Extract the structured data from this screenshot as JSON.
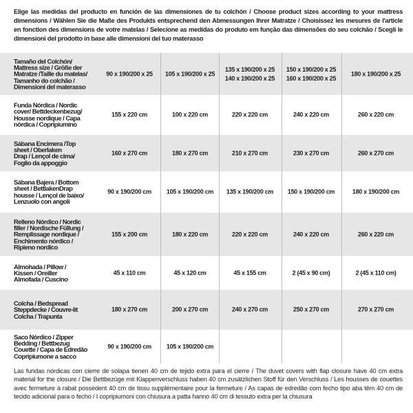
{
  "intro_lines": [
    "Elige las medidas del producto en función de las dimensiones de tu colchón / Choose product sizes according to your mattress",
    "dimensions / Wählen Sie die Maße des Produkts entsprechend den Abmessungen Ihrer Matratze / Choisissez les mesures de l'article",
    "en fonction des dimensions de votre matelas / Selecione as medidas do produto em função das dimensões do seu colchão / Scegli le",
    "dimensioni del prodotto in base alle dimensioni del tuo materasso"
  ],
  "table": {
    "header": {
      "label_lines": [
        "Tamaño del Colchón/",
        "Mattress size / Größe der",
        "Matratze /Taille du matelas/",
        "Tamanho do colchão /",
        "Dimensioni del materasso"
      ],
      "cells": [
        [
          "90 x 190/200 x 25"
        ],
        [
          "105 x 190/200 x 25"
        ],
        [
          "135 x 190/200 x 25",
          "140 x 190/200 x 25"
        ],
        [
          "150 x 190/200 x 25",
          "160 x 190/200 x 25"
        ],
        [
          "180 x 190/200 x 25"
        ]
      ]
    },
    "rows": [
      {
        "label_lines": [
          "Funda Nórdica /  Nordic",
          "cover/ Bettdeckenbezug/",
          "Housse nordique  / Capa",
          "nórdica / Copripiumino"
        ],
        "cells": [
          "155 x 220 cm",
          "100 x 220 cm",
          "220 x 220 cm",
          "240 x 220 cm",
          "260 x 220 cm"
        ]
      },
      {
        "label_lines": [
          "Sábana Encimera /Top",
          "sheet / Oberlaken",
          "Drap / Lençol de cima/",
          "Foglio da appoggio"
        ],
        "cells": [
          "160 x 270 cm",
          "180 x 270 cm",
          "210 x 270 cm",
          "230 x 270 cm",
          "260 x 270 cm"
        ]
      },
      {
        "label_lines": [
          "Sábana Bajera / Bottom",
          "sheet / BettlakenDrap",
          "housse / Lençol de baixo/",
          "Lenzuolo con angoli"
        ],
        "cells": [
          "90 x 190/200 cm",
          "105 x 190/200 cm",
          "135 x 190/200 cm",
          "150 x 190/200 cm",
          "180 x 190/200 cm"
        ]
      },
      {
        "label_lines": [
          "Relleno Nórdico / Nordic",
          "filler / Nordische Füllung /",
          "Remplissage nordique /",
          "Enchimento nórdico /",
          "Ripieno nordico"
        ],
        "cells": [
          "155 x 200 cm",
          "180 x 220 cm",
          "220 x 220 cm",
          "240 x 220 cm",
          "260 x 220 cm"
        ]
      },
      {
        "label_lines": [
          "Almohada  / Pillow /",
          "Kissen / Oreiller",
          "Almofada / Cuscino"
        ],
        "cells": [
          "45 x 110 cm",
          "45 x 120 cm",
          "45 x 155 cm",
          "2 (45 x 90 cm)",
          "2 (45 x 110 cm)"
        ]
      },
      {
        "label_lines": [
          "Colcha / Bedspread",
          "Steppdecke / Couvre-lit",
          "Colcha / Trapunta"
        ],
        "cells": [
          "180 x 270 cm",
          "200 x 270 cm",
          "240 x 270 cm",
          "250 x 270 cm",
          "270 x 270 cm"
        ]
      },
      {
        "label_lines": [
          "Saco Nórdico / Zipper",
          "Bedding / Bettbezug",
          "Couette  / Capa de Edredão",
          "Copripiumone a sacco"
        ],
        "cells": [
          "90 x 190/200 cm",
          "105 x 190/200 cm",
          "",
          "",
          ""
        ]
      }
    ]
  },
  "footer_lines": [
    "Las fundas nórdicas con cierre de solapa tienen 40 cm de tejido extra para el cierre  / The duvet covers with flap closure have 40 cm extra",
    "material for the closure / Die Bettbezüge mit Klappenverschluss haben 40 cm zusätzlichen Stoff für den Verschluss / Les housses de couettes",
    "avec fermeture à rabat possèdent 40 cm de tissu supplémentaire pour la fermeture / As capas de edredão com fecho tipo aba têm 40 cm de",
    "tecido adicional para o fecho / I copripiumoni con chiusura a patta hanno 40 cm di tessuto extra per la chiusura"
  ],
  "colors": {
    "row_shade": "#e6e6e6",
    "text": "#1e1e1e",
    "divider": "#bdbdbd"
  }
}
